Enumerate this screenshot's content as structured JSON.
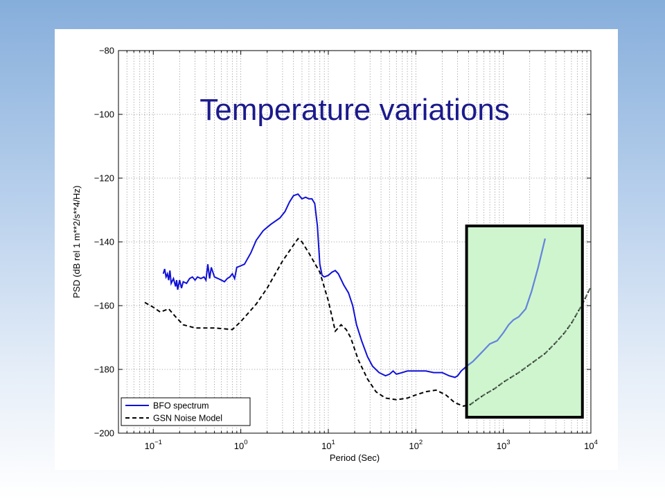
{
  "chart_data": {
    "type": "line",
    "title": "Temperature variations",
    "xlabel": "Period (Sec)",
    "ylabel": "PSD (dB rel 1 m**2/s**4/Hz)",
    "xscale": "log",
    "xlim": [
      0.04,
      10000
    ],
    "ylim": [
      -200,
      -80
    ],
    "grid": true,
    "legend_position": "bottom-left",
    "xtick_labels": [
      {
        "base": "10",
        "exp": "−1",
        "value": 0.1
      },
      {
        "base": "10",
        "exp": "0",
        "value": 1
      },
      {
        "base": "10",
        "exp": "1",
        "value": 10
      },
      {
        "base": "10",
        "exp": "2",
        "value": 100
      },
      {
        "base": "10",
        "exp": "3",
        "value": 1000
      },
      {
        "base": "10",
        "exp": "4",
        "value": 10000
      }
    ],
    "ytick_labels": [
      "−80",
      "−100",
      "−120",
      "−140",
      "−160",
      "−180",
      "−200"
    ],
    "yticks": [
      -80,
      -100,
      -120,
      -140,
      -160,
      -180,
      -200
    ],
    "highlight_region": {
      "x": [
        380,
        8000
      ],
      "y": [
        -195,
        -135
      ],
      "fill": "#cff5cf",
      "border": "#000000"
    },
    "series": [
      {
        "name": "BFO spectrum",
        "color": "#1010d8",
        "highlight_color": "#6688dd",
        "dash": "solid",
        "points": [
          [
            0.13,
            -150.0
          ],
          [
            0.135,
            -148.5
          ],
          [
            0.14,
            -151.0
          ],
          [
            0.145,
            -150.0
          ],
          [
            0.15,
            -152.0
          ],
          [
            0.155,
            -149.0
          ],
          [
            0.16,
            -153.0
          ],
          [
            0.17,
            -151.5
          ],
          [
            0.18,
            -154.0
          ],
          [
            0.185,
            -152.0
          ],
          [
            0.19,
            -155.0
          ],
          [
            0.2,
            -152.0
          ],
          [
            0.21,
            -154.5
          ],
          [
            0.22,
            -152.5
          ],
          [
            0.24,
            -153.0
          ],
          [
            0.26,
            -151.5
          ],
          [
            0.28,
            -151.0
          ],
          [
            0.3,
            -152.0
          ],
          [
            0.32,
            -151.0
          ],
          [
            0.35,
            -151.5
          ],
          [
            0.38,
            -151.0
          ],
          [
            0.4,
            -152.0
          ],
          [
            0.42,
            -147.0
          ],
          [
            0.44,
            -151.5
          ],
          [
            0.46,
            -148.0
          ],
          [
            0.5,
            -151.0
          ],
          [
            0.55,
            -151.5
          ],
          [
            0.6,
            -152.0
          ],
          [
            0.65,
            -152.5
          ],
          [
            0.7,
            -151.5
          ],
          [
            0.75,
            -151.0
          ],
          [
            0.8,
            -150.0
          ],
          [
            0.85,
            -151.5
          ],
          [
            0.9,
            -148.0
          ],
          [
            1.0,
            -147.5
          ],
          [
            1.1,
            -147.0
          ],
          [
            1.3,
            -143.5
          ],
          [
            1.5,
            -139.5
          ],
          [
            1.8,
            -136.5
          ],
          [
            2.2,
            -134.5
          ],
          [
            2.8,
            -132.5
          ],
          [
            3.2,
            -130.5
          ],
          [
            3.6,
            -127.5
          ],
          [
            4.0,
            -125.5
          ],
          [
            4.5,
            -125.0
          ],
          [
            5.0,
            -126.5
          ],
          [
            5.5,
            -126.0
          ],
          [
            6.0,
            -126.5
          ],
          [
            6.5,
            -126.5
          ],
          [
            7.0,
            -128.0
          ],
          [
            7.5,
            -135.0
          ],
          [
            8.0,
            -147.0
          ],
          [
            8.5,
            -150.5
          ],
          [
            9.0,
            -151.0
          ],
          [
            10.0,
            -150.5
          ],
          [
            11.0,
            -149.5
          ],
          [
            12.0,
            -149.0
          ],
          [
            13.0,
            -150.0
          ],
          [
            15.0,
            -153.5
          ],
          [
            17.0,
            -156.0
          ],
          [
            19.0,
            -160.0
          ],
          [
            21.0,
            -166.0
          ],
          [
            24.0,
            -171.0
          ],
          [
            28.0,
            -176.0
          ],
          [
            32.0,
            -179.0
          ],
          [
            38.0,
            -181.0
          ],
          [
            45.0,
            -182.0
          ],
          [
            50.0,
            -181.5
          ],
          [
            55.0,
            -180.5
          ],
          [
            60.0,
            -181.5
          ],
          [
            70.0,
            -181.0
          ],
          [
            80.0,
            -180.5
          ],
          [
            100.0,
            -180.5
          ],
          [
            130.0,
            -180.5
          ],
          [
            160.0,
            -181.0
          ],
          [
            200.0,
            -181.0
          ],
          [
            240.0,
            -182.0
          ],
          [
            280.0,
            -182.5
          ],
          [
            300.0,
            -182.0
          ],
          [
            330.0,
            -180.5
          ],
          [
            380.0,
            -179.0
          ],
          [
            450.0,
            -177.5
          ],
          [
            550.0,
            -175.0
          ],
          [
            700.0,
            -172.0
          ],
          [
            850.0,
            -171.0
          ],
          [
            1000.0,
            -168.5
          ],
          [
            1150.0,
            -166.0
          ],
          [
            1300.0,
            -164.5
          ],
          [
            1500.0,
            -163.5
          ],
          [
            1800.0,
            -161.0
          ],
          [
            2100.0,
            -155.5
          ],
          [
            2500.0,
            -148.0
          ],
          [
            3000.0,
            -139.0
          ]
        ]
      },
      {
        "name": "GSN Noise Model",
        "color": "#000000",
        "highlight_color": "#5a6e5a",
        "dash": "dashed",
        "points": [
          [
            0.08,
            -159.0
          ],
          [
            0.1,
            -160.5
          ],
          [
            0.12,
            -162.0
          ],
          [
            0.15,
            -161.0
          ],
          [
            0.18,
            -163.5
          ],
          [
            0.22,
            -166.0
          ],
          [
            0.3,
            -167.0
          ],
          [
            0.5,
            -167.0
          ],
          [
            0.8,
            -167.5
          ],
          [
            1.0,
            -165.0
          ],
          [
            1.5,
            -159.5
          ],
          [
            2.0,
            -154.5
          ],
          [
            3.0,
            -146.0
          ],
          [
            4.0,
            -141.0
          ],
          [
            4.5,
            -139.0
          ],
          [
            5.0,
            -140.0
          ],
          [
            6.0,
            -143.5
          ],
          [
            8.0,
            -149.5
          ],
          [
            10.0,
            -158.5
          ],
          [
            12.0,
            -168.0
          ],
          [
            14.0,
            -166.0
          ],
          [
            16.0,
            -167.5
          ],
          [
            18.0,
            -170.0
          ],
          [
            22.0,
            -177.0
          ],
          [
            28.0,
            -183.0
          ],
          [
            35.0,
            -187.0
          ],
          [
            45.0,
            -189.0
          ],
          [
            60.0,
            -189.5
          ],
          [
            80.0,
            -189.0
          ],
          [
            100.0,
            -188.0
          ],
          [
            130.0,
            -187.0
          ],
          [
            170.0,
            -186.5
          ],
          [
            220.0,
            -188.0
          ],
          [
            280.0,
            -190.5
          ],
          [
            350.0,
            -191.5
          ],
          [
            420.0,
            -191.0
          ],
          [
            500.0,
            -189.5
          ],
          [
            600.0,
            -188.0
          ],
          [
            800.0,
            -186.0
          ],
          [
            1000.0,
            -184.0
          ],
          [
            1500.0,
            -181.0
          ],
          [
            2000.0,
            -178.5
          ],
          [
            3000.0,
            -175.0
          ],
          [
            4000.0,
            -171.5
          ],
          [
            5000.0,
            -168.5
          ],
          [
            6000.0,
            -165.5
          ],
          [
            8000.0,
            -159.5
          ],
          [
            10000.0,
            -154.0
          ]
        ]
      }
    ]
  }
}
